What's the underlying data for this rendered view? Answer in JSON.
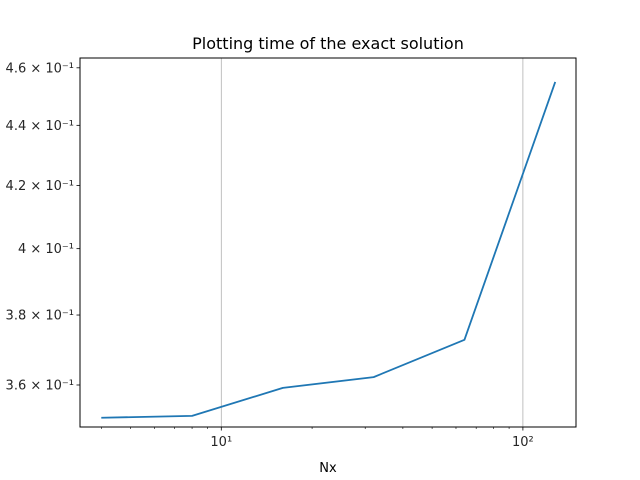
{
  "chart_data": {
    "type": "line",
    "title": "Plotting time of the exact solution",
    "xlabel": "Nx",
    "ylabel": "",
    "xscale": "log",
    "yscale": "log",
    "xlim": [
      3.4,
      150
    ],
    "ylim": [
      0.3485,
      0.4635
    ],
    "grid": "x-major",
    "line_color": "#1f77b4",
    "x": [
      4,
      8,
      16,
      32,
      64,
      128
    ],
    "series": [
      {
        "values": [
          0.351,
          0.3515,
          0.3592,
          0.3622,
          0.3728,
          0.455
        ]
      }
    ],
    "x_ticks": [
      {
        "value": 10,
        "label": "10¹"
      },
      {
        "value": 100,
        "label": "10²"
      }
    ],
    "y_ticks": [
      {
        "value": 0.36,
        "label": "3.6 × 10⁻¹"
      },
      {
        "value": 0.38,
        "label": "3.8 × 10⁻¹"
      },
      {
        "value": 0.4,
        "label": "4 × 10⁻¹"
      },
      {
        "value": 0.42,
        "label": "4.2 × 10⁻¹"
      },
      {
        "value": 0.44,
        "label": "4.4 × 10⁻¹"
      },
      {
        "value": 0.46,
        "label": "4.6 × 10⁻¹"
      }
    ]
  }
}
